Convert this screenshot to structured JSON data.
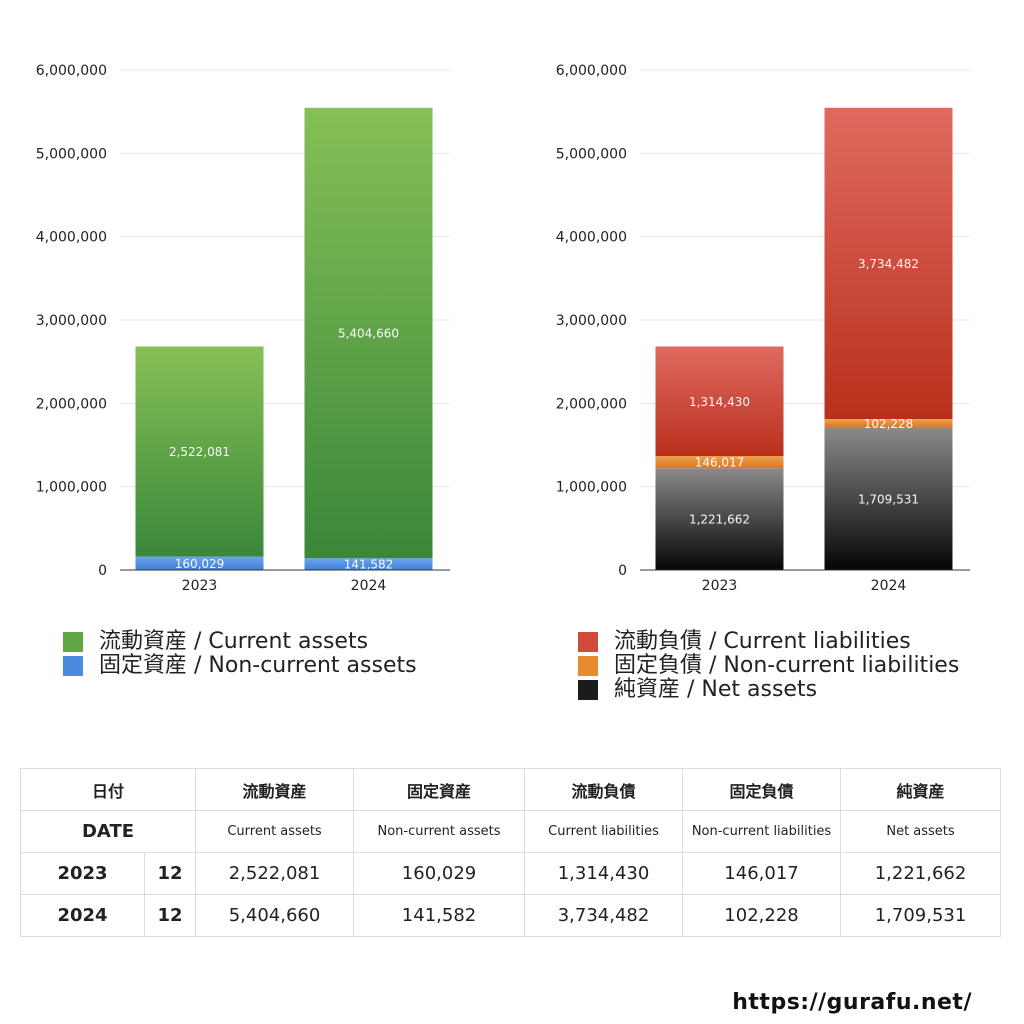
{
  "chart_data": [
    {
      "type": "bar",
      "stacked": true,
      "categories": [
        "2023",
        "2024"
      ],
      "ylim": [
        0,
        6000000
      ],
      "yticks": [
        "0",
        "1,000,000",
        "2,000,000",
        "3,000,000",
        "4,000,000",
        "5,000,000",
        "6,000,000"
      ],
      "grid": true,
      "series": [
        {
          "name": "固定資産 / Non-current assets",
          "values": [
            160029,
            141582
          ],
          "labels": [
            "160,029",
            "141,582"
          ],
          "color_top": "#6aa6ee",
          "color_bottom": "#3f7fd6"
        },
        {
          "name": "流動資産 / Current assets",
          "values": [
            2522081,
            5404660
          ],
          "labels": [
            "2,522,081",
            "5,404,660"
          ],
          "color_top": "#86c056",
          "color_bottom": "#3a873a"
        }
      ]
    },
    {
      "type": "bar",
      "stacked": true,
      "categories": [
        "2023",
        "2024"
      ],
      "ylim": [
        0,
        6000000
      ],
      "yticks": [
        "0",
        "1,000,000",
        "2,000,000",
        "3,000,000",
        "4,000,000",
        "5,000,000",
        "6,000,000"
      ],
      "grid": true,
      "series": [
        {
          "name": "純資産 / Net assets",
          "values": [
            1221662,
            1709531
          ],
          "labels": [
            "1,221,662",
            "1,709,531"
          ],
          "color_top": "#8a8a8a",
          "color_bottom": "#050505"
        },
        {
          "name": "固定負債 / Non-current liabilities",
          "values": [
            146017,
            102228
          ],
          "labels": [
            "146,017",
            "102,228"
          ],
          "color_top": "#f0a050",
          "color_bottom": "#d9781e"
        },
        {
          "name": "流動負債 / Current liabilities",
          "values": [
            1314430,
            3734482
          ],
          "labels": [
            "1,314,430",
            "3,734,482"
          ],
          "color_top": "#e06a60",
          "color_bottom": "#b8301c"
        }
      ]
    }
  ],
  "legend_assets": [
    {
      "label": "流動資産 / Current assets",
      "color": "#5fa844"
    },
    {
      "label": "固定資産 / Non-current assets",
      "color": "#4a8be0"
    }
  ],
  "legend_liab": [
    {
      "label": "流動負債 / Current liabilities",
      "color": "#d24a3a"
    },
    {
      "label": "固定負債 / Non-current liabilities",
      "color": "#e88a30"
    },
    {
      "label": "純資産 / Net assets",
      "color": "#1a1a1a"
    }
  ],
  "table": {
    "jp_headers": [
      "日付",
      "流動資産",
      "固定資産",
      "流動負債",
      "固定負債",
      "純資産"
    ],
    "en_headers": [
      "DATE",
      "Current assets",
      "Non-current assets",
      "Current liabilities",
      "Non-current liabilities",
      "Net assets"
    ],
    "rows": [
      {
        "year": "2023",
        "month": "12",
        "values": [
          "2,522,081",
          "160,029",
          "1,314,430",
          "146,017",
          "1,221,662"
        ]
      },
      {
        "year": "2024",
        "month": "12",
        "values": [
          "5,404,660",
          "141,582",
          "3,734,482",
          "102,228",
          "1,709,531"
        ]
      }
    ]
  },
  "site_url": "https://gurafu.net/"
}
